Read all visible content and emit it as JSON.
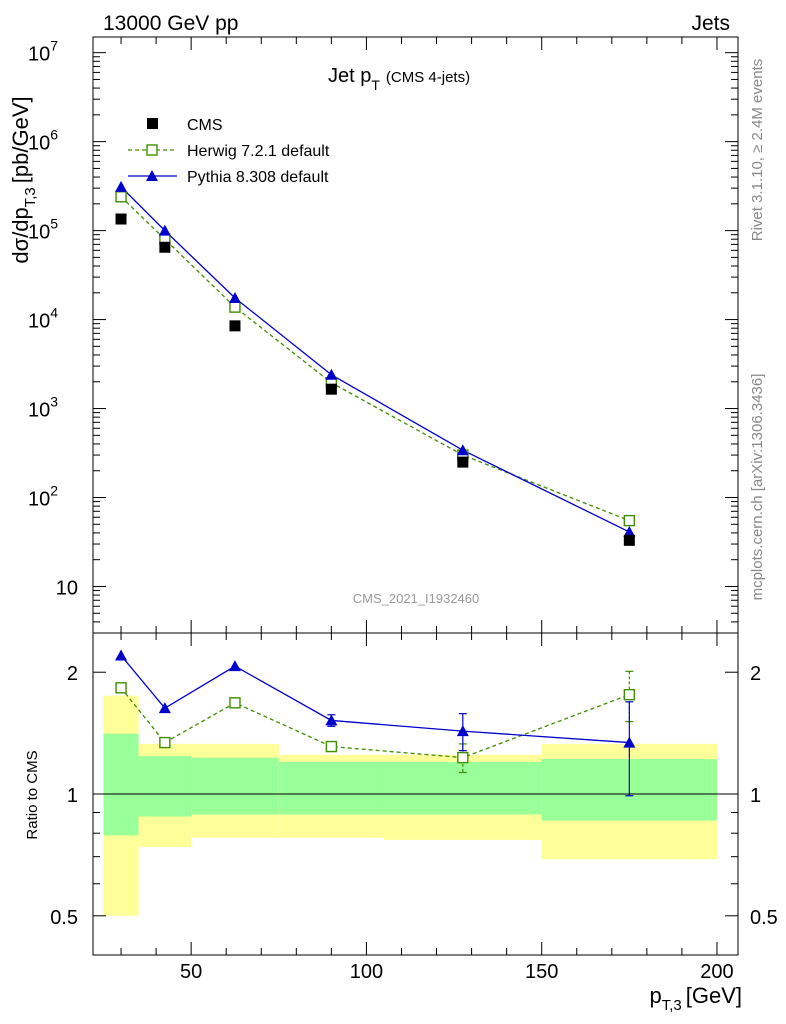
{
  "header": {
    "left": "13000 GeV pp",
    "right": "Jets"
  },
  "side_labels": {
    "rivet": "Rivet 3.1.10, ≥ 2.4M events",
    "mcplots": "mcplots.cern.ch [arXiv:1306.3436]"
  },
  "chart_data": [
    {
      "type": "line",
      "panel": "main",
      "title_main": "Jet p",
      "title_sub": "T",
      "title_suffix": "(CMS 4-jets)",
      "watermark": "CMS_2021_I1932460",
      "ylabel": "dσ/dp",
      "ylabel_sub": "T,3",
      "ylabel_unit": "[pb/GeV]",
      "yscale": "log",
      "ylim": [
        3,
        15000000
      ],
      "xlim": [
        22,
        206
      ],
      "y_ticks": [
        {
          "value": 10,
          "base": "10",
          "exp": ""
        },
        {
          "value": 100,
          "base": "10",
          "exp": "2"
        },
        {
          "value": 1000,
          "base": "10",
          "exp": "3"
        },
        {
          "value": 10000,
          "base": "10",
          "exp": "4"
        },
        {
          "value": 100000,
          "base": "10",
          "exp": "5"
        },
        {
          "value": 1000000,
          "base": "10",
          "exp": "6"
        },
        {
          "value": 10000000,
          "base": "10",
          "exp": "7"
        }
      ],
      "legend": [
        "CMS",
        "Herwig 7.2.1 default",
        "Pythia 8.308 default"
      ],
      "x": [
        30,
        42.5,
        62.5,
        90,
        127.5,
        175
      ],
      "series": [
        {
          "name": "CMS",
          "style": "marker-square",
          "color": "#000000",
          "values": [
            135000,
            65000,
            8500,
            1650,
            250,
            33
          ]
        },
        {
          "name": "Herwig 7.2.1 default",
          "style": "dashed-open-square",
          "color": "#3f8f00",
          "values": [
            240000,
            80000,
            13800,
            1950,
            300,
            55
          ]
        },
        {
          "name": "Pythia 8.308 default",
          "style": "solid-triangle",
          "color": "#0000cc",
          "values": [
            310000,
            100000,
            17500,
            2400,
            340,
            41
          ]
        }
      ]
    },
    {
      "type": "line",
      "panel": "ratio",
      "ylabel": "Ratio to CMS",
      "yscale": "log",
      "ylim": [
        0.4,
        2.5
      ],
      "xlim": [
        22,
        206
      ],
      "xlabel": "p",
      "xlabel_sub": "T,3",
      "xlabel_unit": "[GeV]",
      "x_ticks": [
        50,
        100,
        150,
        200
      ],
      "y_ticks": [
        0.5,
        1,
        2
      ],
      "y_tick_labels": [
        "0.5",
        "1",
        "2"
      ],
      "bands": {
        "bins": [
          [
            25,
            35
          ],
          [
            35,
            50
          ],
          [
            50,
            75
          ],
          [
            75,
            105
          ],
          [
            105,
            150
          ],
          [
            150,
            200
          ]
        ],
        "yellow": [
          [
            0.5,
            1.75
          ],
          [
            0.74,
            1.33
          ],
          [
            0.78,
            1.33
          ],
          [
            0.78,
            1.25
          ],
          [
            0.77,
            1.25
          ],
          [
            0.69,
            1.33
          ]
        ],
        "green": [
          [
            0.79,
            1.41
          ],
          [
            0.88,
            1.24
          ],
          [
            0.89,
            1.23
          ],
          [
            0.89,
            1.2
          ],
          [
            0.89,
            1.2
          ],
          [
            0.86,
            1.22
          ]
        ],
        "yellow_color": "#ffff99",
        "green_color": "#99ff99"
      },
      "x": [
        30,
        42.5,
        62.5,
        90,
        127.5,
        175
      ],
      "series": [
        {
          "name": "Herwig 7.2.1 default",
          "style": "dashed-open-square",
          "color": "#3f8f00",
          "values": [
            1.83,
            1.34,
            1.68,
            1.31,
            1.23,
            1.76
          ],
          "errors": [
            0.02,
            0.02,
            0.02,
            0.03,
            0.1,
            0.25
          ]
        },
        {
          "name": "Pythia 8.308 default",
          "style": "solid-triangle",
          "color": "#0000cc",
          "values": [
            2.2,
            1.63,
            2.07,
            1.52,
            1.43,
            1.34
          ],
          "errors": [
            0.02,
            0.02,
            0.02,
            0.05,
            0.15,
            0.35
          ]
        }
      ]
    }
  ]
}
